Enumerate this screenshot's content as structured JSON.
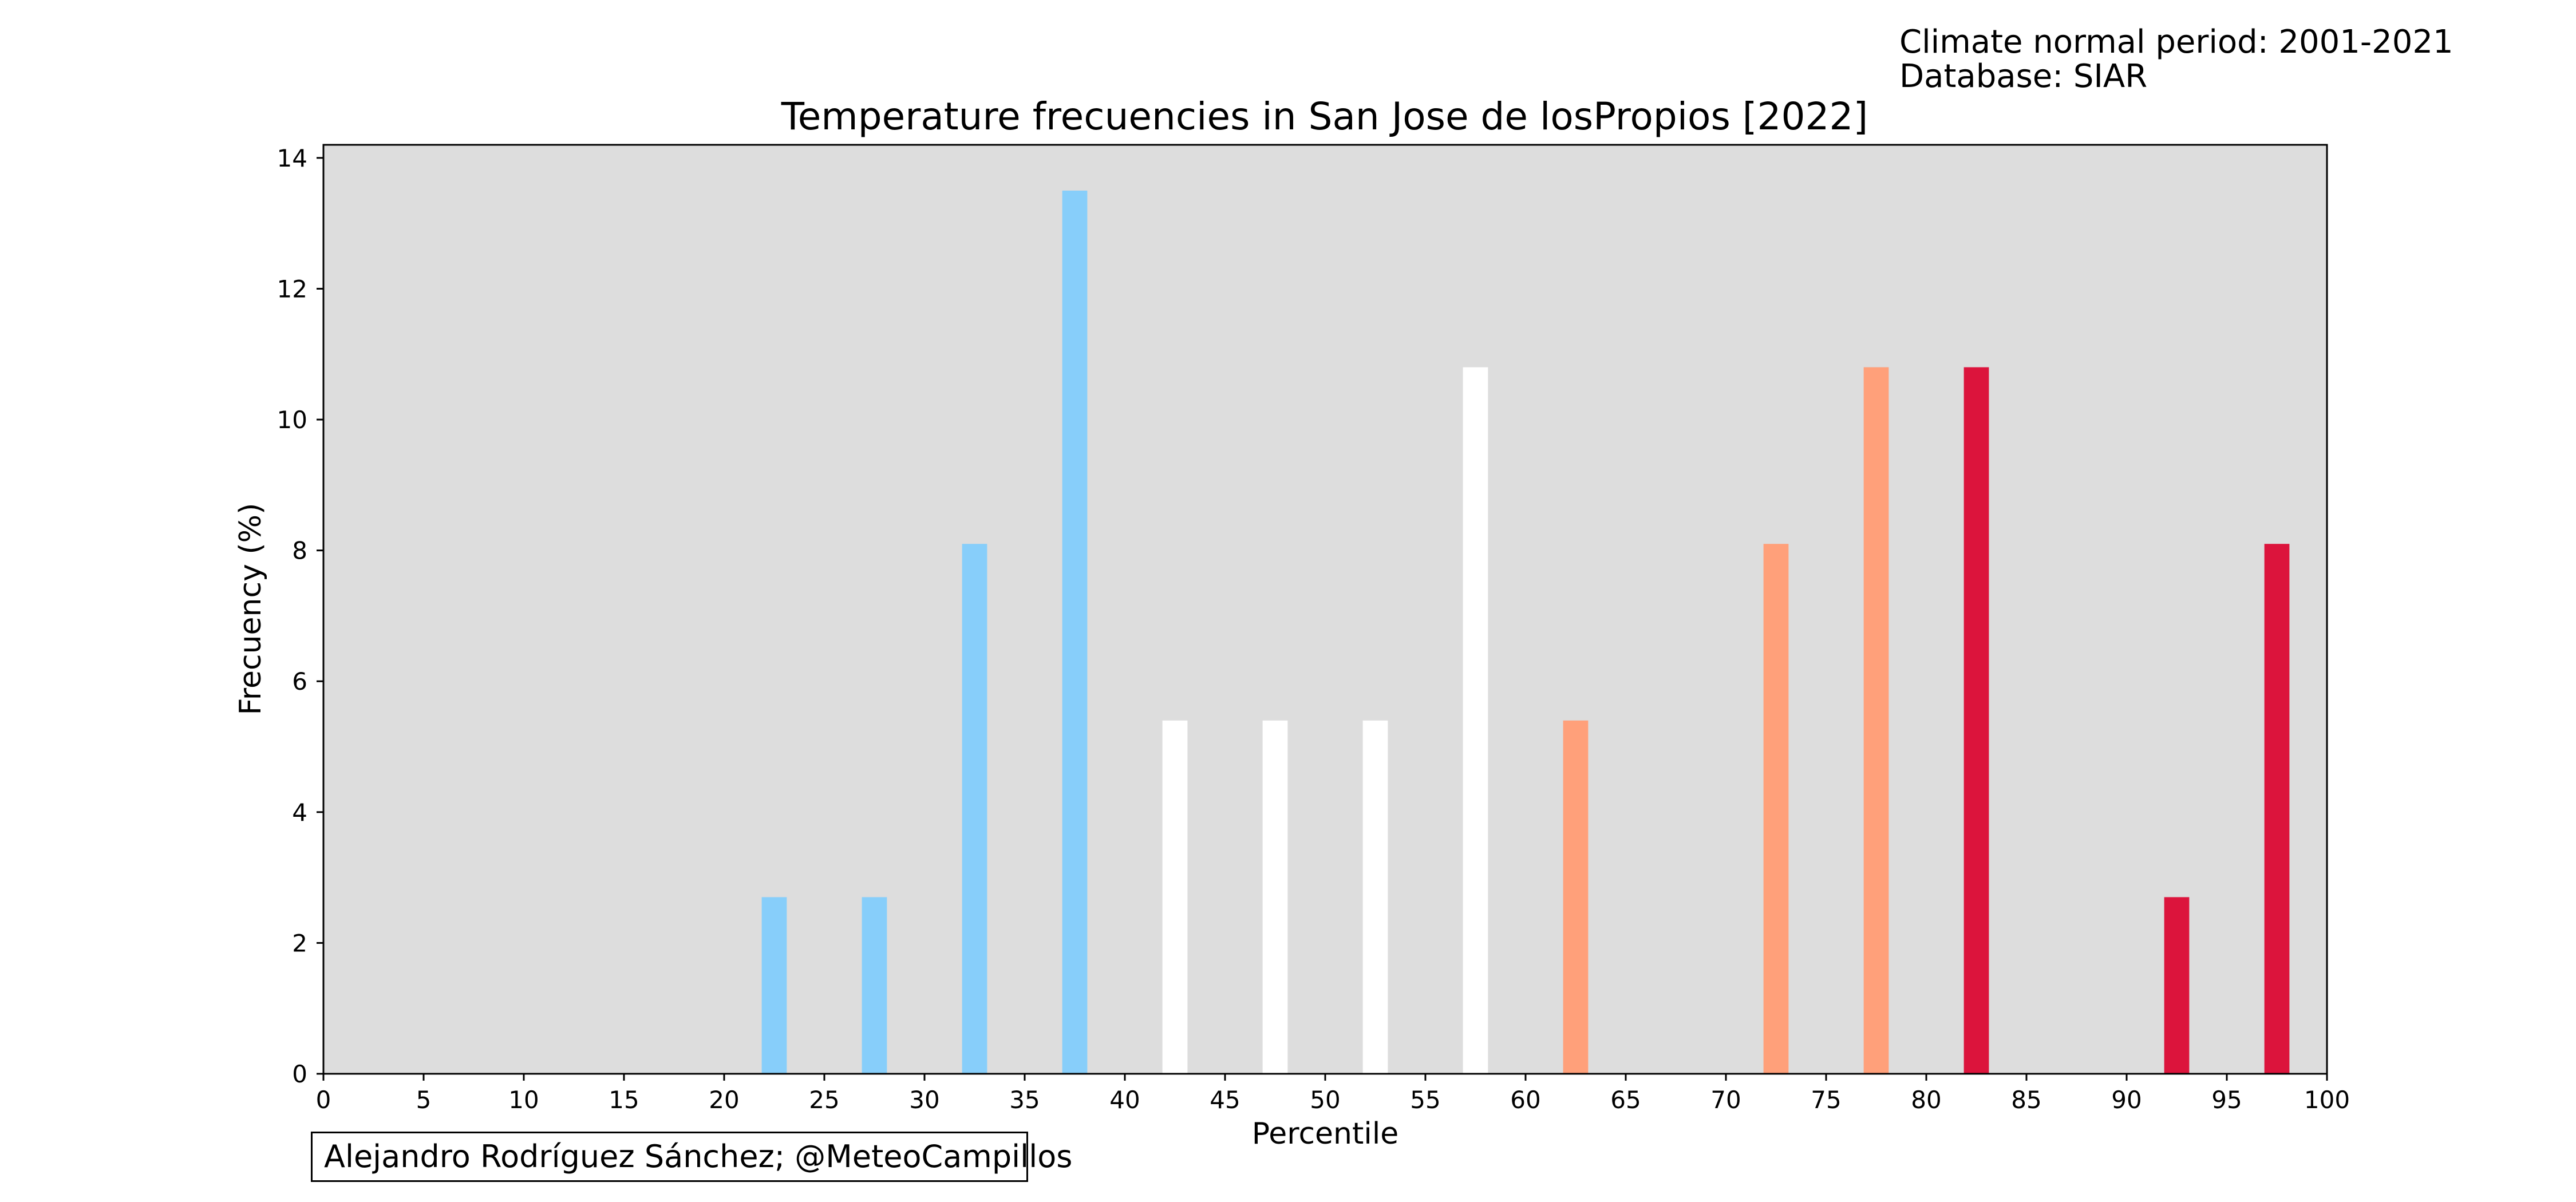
{
  "meta": {
    "climate_period": "Climate normal period: 2001-2021",
    "database": "Database: SIAR"
  },
  "credit": "Alejandro Rodríguez Sánchez; @MeteoCampillos",
  "chart_data": {
    "type": "bar",
    "title": "Temperature frecuencies in San Jose de losPropios [2022]",
    "xlabel": "Percentile",
    "ylabel": "Frecuency (%)",
    "xlim": [
      0,
      100
    ],
    "ylim": [
      0,
      14.2
    ],
    "xticks": [
      0,
      5,
      10,
      15,
      20,
      25,
      30,
      35,
      40,
      45,
      50,
      55,
      60,
      65,
      70,
      75,
      80,
      85,
      90,
      95,
      100
    ],
    "yticks": [
      0,
      2,
      4,
      6,
      8,
      10,
      12,
      14
    ],
    "bar_width": 1.25,
    "background_color": "#dddddd",
    "bars": [
      {
        "x": 22.5,
        "value": 2.7,
        "color": "#87cefa"
      },
      {
        "x": 27.5,
        "value": 2.7,
        "color": "#87cefa"
      },
      {
        "x": 32.5,
        "value": 8.1,
        "color": "#87cefa"
      },
      {
        "x": 37.5,
        "value": 13.5,
        "color": "#87cefa"
      },
      {
        "x": 42.5,
        "value": 5.4,
        "color": "#ffffff"
      },
      {
        "x": 47.5,
        "value": 5.4,
        "color": "#ffffff"
      },
      {
        "x": 52.5,
        "value": 5.4,
        "color": "#ffffff"
      },
      {
        "x": 57.5,
        "value": 10.8,
        "color": "#ffffff"
      },
      {
        "x": 62.5,
        "value": 5.4,
        "color": "#ffa07a"
      },
      {
        "x": 72.5,
        "value": 8.1,
        "color": "#ffa07a"
      },
      {
        "x": 77.5,
        "value": 10.8,
        "color": "#ffa07a"
      },
      {
        "x": 82.5,
        "value": 10.8,
        "color": "#dc143c"
      },
      {
        "x": 92.5,
        "value": 2.7,
        "color": "#dc143c"
      },
      {
        "x": 97.5,
        "value": 8.1,
        "color": "#dc143c"
      }
    ]
  }
}
